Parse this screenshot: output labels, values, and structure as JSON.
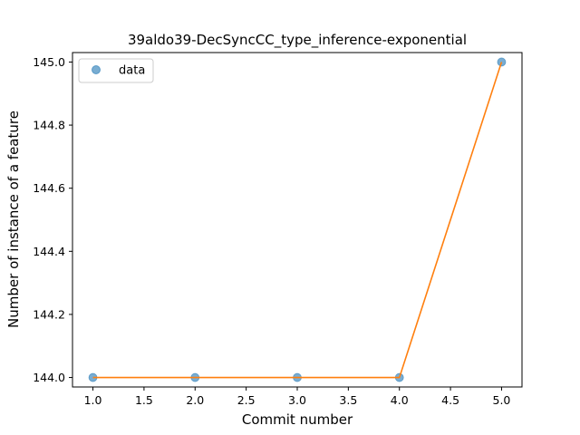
{
  "chart_data": {
    "type": "line",
    "title": "39aldo39-DecSyncCC_type_inference-exponential",
    "xlabel": "Commit number",
    "ylabel": "Number of instance of a feature",
    "xlim": [
      0.8,
      5.2
    ],
    "ylim": [
      143.97,
      145.03
    ],
    "x_ticks": [
      1.0,
      1.5,
      2.0,
      2.5,
      3.0,
      3.5,
      4.0,
      4.5,
      5.0
    ],
    "x_tick_labels": [
      "1.0",
      "1.5",
      "2.0",
      "2.5",
      "3.0",
      "3.5",
      "4.0",
      "4.5",
      "5.0"
    ],
    "y_ticks": [
      144.0,
      144.2,
      144.4,
      144.6,
      144.8,
      145.0
    ],
    "y_tick_labels": [
      "144.0",
      "144.2",
      "144.4",
      "144.6",
      "144.8",
      "145.0"
    ],
    "grid": false,
    "legend_position": "top-left",
    "series": [
      {
        "name": "data",
        "kind": "scatter",
        "color": "#1f77b4",
        "x": [
          1,
          2,
          3,
          4,
          5
        ],
        "y": [
          144,
          144,
          144,
          144,
          145
        ]
      },
      {
        "kind": "line",
        "color": "#ff7f0e",
        "x": [
          1,
          2,
          3,
          4,
          5
        ],
        "y": [
          144,
          144,
          144,
          144,
          145
        ]
      }
    ]
  }
}
